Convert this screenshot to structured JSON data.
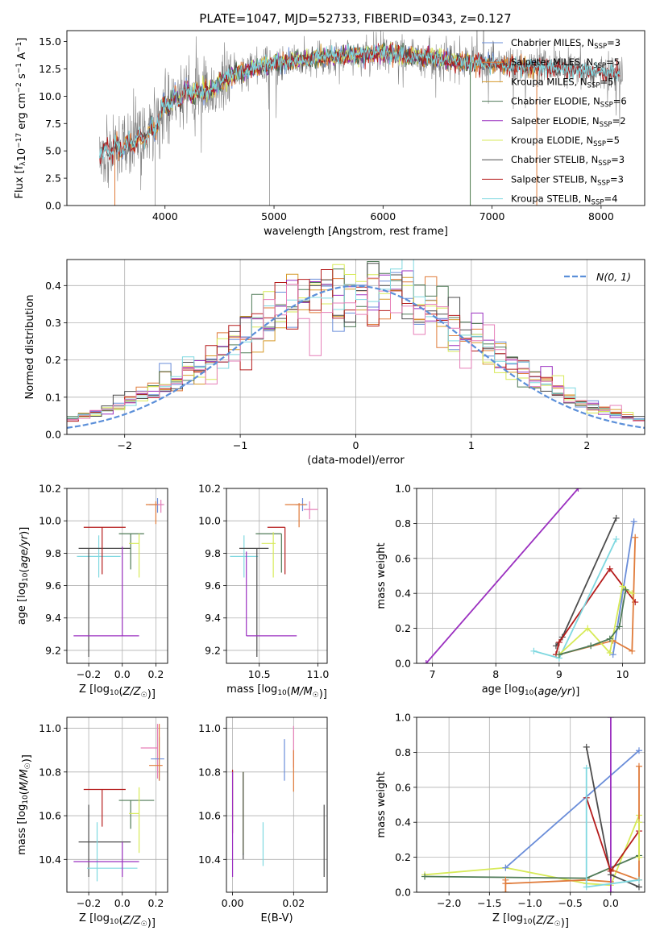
{
  "title": "PLATE=1047, MJD=52733, FIBERID=0343, z=0.127",
  "colors": {
    "chab_miles": "#6a8dd9",
    "salp_miles": "#e07b3a",
    "kroupa_miles": "#d69a2a",
    "chab_elodie": "#4f7a57",
    "salp_elodie": "#9b30c0",
    "kroupa_elodie": "#d7ea58",
    "chab_stelib": "#4d4d4d",
    "salp_stelib": "#b51c1c",
    "kroupa_stelib": "#7fd8e0",
    "pink": "#e67fb8",
    "data": "#808080",
    "normal": "#5b8fd9",
    "grid": "#b0b0b0"
  },
  "chart_data": [
    {
      "id": "spectrum",
      "type": "line",
      "xlabel": "wavelength [Angstrom, rest frame]",
      "ylabel": "Flux [f_λ10^-17 erg cm^-2 s^-1 A^-1]",
      "xlim": [
        3100,
        8400
      ],
      "ylim": [
        0,
        16
      ],
      "xticks": [
        4000,
        5000,
        6000,
        7000,
        8000
      ],
      "yticks": [
        0.0,
        2.5,
        5.0,
        7.5,
        10.0,
        12.5,
        15.0
      ],
      "grid": false,
      "legend_position": "top-right",
      "legend": [
        {
          "label": "Chabrier MILES, N",
          "sub": "SSP",
          "tail": "=3",
          "color_key": "chab_miles"
        },
        {
          "label": "Salpeter MILES, N",
          "sub": "SSP",
          "tail": "=5",
          "color_key": "salp_miles"
        },
        {
          "label": "Kroupa MILES, N",
          "sub": "SSP",
          "tail": "=5",
          "color_key": "kroupa_miles"
        },
        {
          "label": "Chabrier ELODIE, N",
          "sub": "SSP",
          "tail": "=6",
          "color_key": "chab_elodie"
        },
        {
          "label": "Salpeter ELODIE, N",
          "sub": "SSP",
          "tail": "=2",
          "color_key": "salp_elodie"
        },
        {
          "label": "Kroupa ELODIE, N",
          "sub": "SSP",
          "tail": "=5",
          "color_key": "kroupa_elodie"
        },
        {
          "label": "Chabrier STELIB, N",
          "sub": "SSP",
          "tail": "=3",
          "color_key": "chab_stelib"
        },
        {
          "label": "Salpeter STELIB, N",
          "sub": "SSP",
          "tail": "=3",
          "color_key": "salp_stelib"
        },
        {
          "label": "Kroupa STELIB, N",
          "sub": "SSP",
          "tail": "=4",
          "color_key": "kroupa_stelib"
        }
      ],
      "continuum": {
        "x": [
          3400,
          3600,
          3800,
          3900,
          4000,
          4200,
          4400,
          4600,
          4800,
          5000,
          5200,
          5400,
          5600,
          5800,
          6000,
          6200,
          6400,
          6600,
          6800,
          7000,
          7200,
          7400,
          7600,
          7800,
          8000,
          8200
        ],
        "y": [
          4.8,
          5.3,
          6.2,
          7.0,
          9.2,
          10.3,
          10.5,
          11.8,
          12.6,
          13.0,
          13.3,
          13.5,
          13.7,
          13.8,
          14.0,
          13.7,
          13.5,
          13.3,
          13.1,
          13.0,
          12.8,
          12.6,
          12.5,
          12.3,
          12.2,
          12.0
        ]
      }
    },
    {
      "id": "residuals",
      "type": "histogram",
      "xlabel": "(data-model)/error",
      "ylabel": "Normed distribution",
      "xlim": [
        -2.5,
        2.5
      ],
      "ylim": [
        0,
        0.47
      ],
      "xticks": [
        -2,
        -1,
        0,
        1,
        2
      ],
      "yticks": [
        0.0,
        0.1,
        0.2,
        0.3,
        0.4
      ],
      "grid": true,
      "legend_position": "top-right",
      "legend_label": "N(0, 1)",
      "bins": 50
    },
    {
      "id": "age_vs_z",
      "type": "errorbar",
      "xlabel": "Z [log10(Z/Z☉)]",
      "ylabel": "age [log10(age/yr)]",
      "xlim": [
        -0.33,
        0.27
      ],
      "ylim": [
        9.12,
        10.2
      ],
      "xticks": [
        -0.2,
        0.0,
        0.2
      ],
      "yticks": [
        9.2,
        9.4,
        9.6,
        9.8,
        10.0,
        10.2
      ],
      "grid": true,
      "points": [
        {
          "color_key": "chab_miles",
          "x": 0.21,
          "xerr": [
            0.05,
            0.03
          ],
          "y": 10.1,
          "yerr": [
            0.05,
            0.04
          ]
        },
        {
          "color_key": "salp_miles",
          "x": 0.2,
          "xerr": [
            0.06,
            0.02
          ],
          "y": 10.1,
          "yerr": [
            0.12,
            0.02
          ]
        },
        {
          "color_key": "pink",
          "x": 0.23,
          "xerr": [
            0.02,
            0.02
          ],
          "y": 10.1,
          "yerr": [
            0.05,
            0.03
          ]
        },
        {
          "color_key": "kroupa_stelib",
          "x": -0.14,
          "xerr": [
            0.13,
            0.13
          ],
          "y": 9.78,
          "yerr": [
            0.13,
            0.13
          ]
        },
        {
          "color_key": "chab_stelib",
          "x": -0.2,
          "xerr": [
            0.06,
            0.25
          ],
          "y": 9.83,
          "yerr": [
            0.67,
            0.0
          ]
        },
        {
          "color_key": "chab_elodie",
          "x": 0.05,
          "xerr": [
            0.07,
            0.08
          ],
          "y": 9.92,
          "yerr": [
            0.22,
            0.0
          ]
        },
        {
          "color_key": "kroupa_elodie",
          "x": 0.1,
          "xerr": [
            0.06,
            0.0
          ],
          "y": 9.86,
          "yerr": [
            0.21,
            0.06
          ]
        },
        {
          "color_key": "salp_stelib",
          "x": -0.12,
          "xerr": [
            0.11,
            0.14
          ],
          "y": 9.96,
          "yerr": [
            0.29,
            0.0
          ]
        },
        {
          "color_key": "salp_elodie",
          "x": 0.0,
          "xerr": [
            0.29,
            0.1
          ],
          "y": 9.29,
          "yerr": [
            0.0,
            0.55
          ]
        }
      ]
    },
    {
      "id": "age_vs_mass",
      "type": "errorbar",
      "xlabel": "mass [log10(M/M☉)]",
      "ylabel": "",
      "xlim": [
        10.22,
        11.08
      ],
      "ylim": [
        9.12,
        10.2
      ],
      "xticks": [
        10.5,
        11.0
      ],
      "yticks": [
        9.2,
        9.4,
        9.6,
        9.8,
        10.0,
        10.2
      ],
      "grid": true,
      "points": [
        {
          "color_key": "chab_miles",
          "x": 10.87,
          "xerr": [
            0.06,
            0.04
          ],
          "y": 10.1,
          "yerr": [
            0.04,
            0.04
          ]
        },
        {
          "color_key": "salp_miles",
          "x": 10.84,
          "xerr": [
            0.12,
            0.06
          ],
          "y": 10.1,
          "yerr": [
            0.14,
            0.01
          ]
        },
        {
          "color_key": "pink",
          "x": 10.93,
          "xerr": [
            0.05,
            0.07
          ],
          "y": 10.07,
          "yerr": [
            0.06,
            0.05
          ]
        },
        {
          "color_key": "kroupa_stelib",
          "x": 10.37,
          "xerr": [
            0.12,
            0.12
          ],
          "y": 9.78,
          "yerr": [
            0.13,
            0.13
          ]
        },
        {
          "color_key": "chab_stelib",
          "x": 10.48,
          "xerr": [
            0.15,
            0.1
          ],
          "y": 9.83,
          "yerr": [
            0.67,
            0.0
          ]
        },
        {
          "color_key": "chab_elodie",
          "x": 10.69,
          "xerr": [
            0.22,
            0.0
          ],
          "y": 9.92,
          "yerr": [
            0.24,
            0.0
          ]
        },
        {
          "color_key": "kroupa_elodie",
          "x": 10.62,
          "xerr": [
            0.1,
            0.02
          ],
          "y": 9.86,
          "yerr": [
            0.21,
            0.07
          ]
        },
        {
          "color_key": "salp_stelib",
          "x": 10.72,
          "xerr": [
            0.15,
            0.0
          ],
          "y": 9.96,
          "yerr": [
            0.29,
            0.0
          ]
        },
        {
          "color_key": "salp_elodie",
          "x": 10.39,
          "xerr": [
            0.0,
            0.43
          ],
          "y": 9.29,
          "yerr": [
            0.0,
            0.52
          ]
        }
      ]
    },
    {
      "id": "weight_vs_age",
      "type": "line",
      "xlabel": "age [log10(age/yr)]",
      "ylabel": "mass weight",
      "xlim": [
        6.75,
        10.35
      ],
      "ylim": [
        0,
        1.0
      ],
      "xticks": [
        7,
        8,
        9,
        10
      ],
      "yticks": [
        0.0,
        0.2,
        0.4,
        0.6,
        0.8,
        1.0
      ],
      "grid": true,
      "series": [
        {
          "color_key": "salp_elodie",
          "x": [
            6.9,
            9.3
          ],
          "y": [
            0.0,
            1.0
          ]
        },
        {
          "color_key": "chab_stelib",
          "x": [
            8.95,
            9.05,
            9.9
          ],
          "y": [
            0.1,
            0.15,
            0.83
          ]
        },
        {
          "color_key": "salp_stelib",
          "x": [
            8.95,
            9.0,
            9.8,
            10.2
          ],
          "y": [
            0.05,
            0.12,
            0.54,
            0.35
          ]
        },
        {
          "color_key": "kroupa_stelib",
          "x": [
            8.6,
            9.0,
            9.9
          ],
          "y": [
            0.07,
            0.03,
            0.71
          ]
        },
        {
          "color_key": "chab_miles",
          "x": [
            9.85,
            10.18
          ],
          "y": [
            0.05,
            0.81
          ]
        },
        {
          "color_key": "salp_miles",
          "x": [
            9.0,
            9.85,
            10.15,
            10.2
          ],
          "y": [
            0.05,
            0.13,
            0.07,
            0.72
          ]
        },
        {
          "color_key": "kroupa_elodie",
          "x": [
            9.0,
            9.45,
            9.8,
            10.0,
            10.15
          ],
          "y": [
            0.05,
            0.2,
            0.06,
            0.44,
            0.4
          ]
        },
        {
          "color_key": "chab_elodie",
          "x": [
            9.0,
            9.5,
            9.8,
            9.95,
            10.05
          ],
          "y": [
            0.05,
            0.1,
            0.14,
            0.21,
            0.42
          ]
        }
      ]
    },
    {
      "id": "mass_vs_z",
      "type": "errorbar",
      "xlabel": "Z [log10(Z/Z☉)]",
      "ylabel": "mass [log10(M/M☉)]",
      "xlim": [
        -0.33,
        0.27
      ],
      "ylim": [
        10.25,
        11.05
      ],
      "xticks": [
        -0.2,
        0.0,
        0.2
      ],
      "yticks": [
        10.4,
        10.6,
        10.8,
        11.0
      ],
      "grid": true,
      "points": [
        {
          "color_key": "pink",
          "x": 0.21,
          "xerr": [
            0.1,
            0.0
          ],
          "y": 10.91,
          "yerr": [
            0.14,
            0.11
          ]
        },
        {
          "color_key": "chab_miles",
          "x": 0.22,
          "xerr": [
            0.05,
            0.03
          ],
          "y": 10.86,
          "yerr": [
            0.1,
            0.1
          ]
        },
        {
          "color_key": "salp_miles",
          "x": 0.22,
          "xerr": [
            0.06,
            0.02
          ],
          "y": 10.83,
          "yerr": [
            0.07,
            0.19
          ]
        },
        {
          "color_key": "salp_stelib",
          "x": -0.12,
          "xerr": [
            0.11,
            0.14
          ],
          "y": 10.72,
          "yerr": [
            0.17,
            0.0
          ]
        },
        {
          "color_key": "chab_elodie",
          "x": 0.05,
          "xerr": [
            0.07,
            0.14
          ],
          "y": 10.67,
          "yerr": [
            0.13,
            0.0
          ]
        },
        {
          "color_key": "kroupa_elodie",
          "x": 0.1,
          "xerr": [
            0.06,
            0.0
          ],
          "y": 10.61,
          "yerr": [
            0.18,
            0.12
          ]
        },
        {
          "color_key": "chab_stelib",
          "x": -0.2,
          "xerr": [
            0.06,
            0.25
          ],
          "y": 10.48,
          "yerr": [
            0.16,
            0.17
          ]
        },
        {
          "color_key": "kroupa_stelib",
          "x": -0.15,
          "xerr": [
            0.06,
            0.24
          ],
          "y": 10.36,
          "yerr": [
            0.06,
            0.21
          ]
        },
        {
          "color_key": "salp_elodie",
          "x": 0.0,
          "xerr": [
            0.29,
            0.1
          ],
          "y": 10.39,
          "yerr": [
            0.07,
            0.09
          ]
        }
      ]
    },
    {
      "id": "mass_vs_ebv",
      "type": "errorbar",
      "xlabel": "E(B-V)",
      "ylabel": "",
      "xlim": [
        -0.002,
        0.031
      ],
      "ylim": [
        10.25,
        11.05
      ],
      "xticks": [
        0.0,
        0.02
      ],
      "yticks": [
        10.4,
        10.6,
        10.8,
        11.0
      ],
      "grid": true,
      "points": [
        {
          "color_key": "pink",
          "x": 0.02,
          "xerr": [
            0,
            0
          ],
          "y": 10.91,
          "yerr": [
            0.09,
            0.1
          ]
        },
        {
          "color_key": "chab_miles",
          "x": 0.017,
          "xerr": [
            0,
            0
          ],
          "y": 10.86,
          "yerr": [
            0.1,
            0.09
          ]
        },
        {
          "color_key": "salp_miles",
          "x": 0.02,
          "xerr": [
            0,
            0
          ],
          "y": 10.83,
          "yerr": [
            0.12,
            0.07
          ]
        },
        {
          "color_key": "salp_stelib",
          "x": 0.0,
          "xerr": [
            0,
            0
          ],
          "y": 10.72,
          "yerr": [
            0.2,
            0.09
          ]
        },
        {
          "color_key": "salp_elodie",
          "x": 0.0,
          "xerr": [
            0,
            0
          ],
          "y": 10.6,
          "yerr": [
            0.28,
            0.2
          ]
        },
        {
          "color_key": "chab_elodie",
          "x": 0.0035,
          "xerr": [
            0,
            0
          ],
          "y": 10.67,
          "yerr": [
            0.25,
            0.13
          ]
        },
        {
          "color_key": "kroupa_elodie",
          "x": 0.0035,
          "xerr": [
            0,
            0
          ],
          "y": 10.61,
          "yerr": [
            0.18,
            0.19
          ]
        },
        {
          "color_key": "chab_stelib",
          "x": 0.0035,
          "xerr": [
            0,
            0
          ],
          "y": 10.6,
          "yerr": [
            0.2,
            0.2
          ]
        },
        {
          "color_key": "kroupa_stelib",
          "x": 0.01,
          "xerr": [
            0,
            0
          ],
          "y": 10.47,
          "yerr": [
            0.1,
            0.1
          ]
        },
        {
          "color_key": "chab_stelib",
          "x": 0.03,
          "xerr": [
            0,
            0
          ],
          "y": 10.48,
          "yerr": [
            0.16,
            0.17
          ]
        }
      ]
    },
    {
      "id": "weight_vs_z",
      "type": "line",
      "xlabel": "Z [log10(Z/Z☉)]",
      "ylabel": "mass weight",
      "xlim": [
        -2.4,
        0.42
      ],
      "ylim": [
        0,
        1.0
      ],
      "xticks": [
        -2.0,
        -1.5,
        -1.0,
        -0.5,
        0.0
      ],
      "yticks": [
        0.0,
        0.2,
        0.4,
        0.6,
        0.8,
        1.0
      ],
      "grid": true,
      "series": [
        {
          "color_key": "kroupa_elodie",
          "x": [
            -2.3,
            -1.3,
            -0.3,
            0.0,
            0.35
          ],
          "y": [
            0.1,
            0.14,
            0.05,
            0.04,
            0.44
          ]
        },
        {
          "color_key": "chab_elodie",
          "x": [
            -2.3,
            -0.3,
            0.35
          ],
          "y": [
            0.09,
            0.08,
            0.21
          ]
        },
        {
          "color_key": "chab_miles",
          "x": [
            -1.3,
            0.35
          ],
          "y": [
            0.14,
            0.81
          ]
        },
        {
          "color_key": "salp_miles",
          "x": [
            -1.3,
            -0.3,
            0.0,
            0.0,
            0.35,
            0.35
          ],
          "y": [
            0.05,
            0.07,
            0.06,
            0.13,
            0.07,
            0.72
          ]
        },
        {
          "color_key": "salp_elodie",
          "x": [
            0.0,
            0.0
          ],
          "y": [
            0.0,
            1.0
          ]
        },
        {
          "color_key": "chab_stelib",
          "x": [
            -0.3,
            0.0,
            0.35
          ],
          "y": [
            0.83,
            0.1,
            0.03
          ]
        },
        {
          "color_key": "salp_stelib",
          "x": [
            -0.3,
            0.0,
            0.35
          ],
          "y": [
            0.54,
            0.12,
            0.35
          ]
        },
        {
          "color_key": "kroupa_stelib",
          "x": [
            -0.3,
            -0.3,
            0.35
          ],
          "y": [
            0.71,
            0.03,
            0.07
          ]
        },
        {
          "color_key": "salp_miles",
          "x": [
            -1.3,
            -1.3
          ],
          "y": [
            0.07,
            0.0
          ]
        },
        {
          "color_key": "kroupa_elodie",
          "x": [
            0.35,
            0.35
          ],
          "y": [
            0.4,
            0.2
          ]
        }
      ]
    }
  ]
}
